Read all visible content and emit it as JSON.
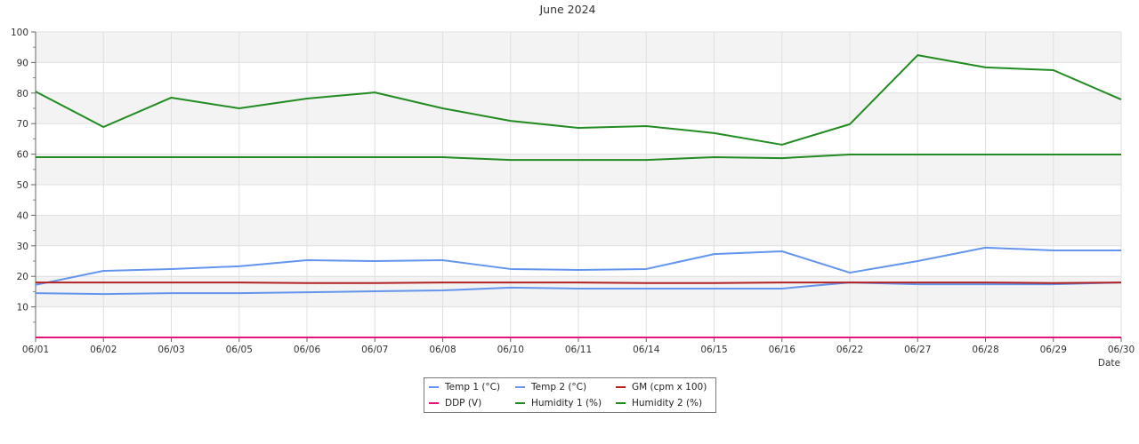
{
  "chart_data": {
    "type": "line",
    "title": "June 2024",
    "xlabel": "Date",
    "ylabel": "",
    "ylim": [
      0,
      100
    ],
    "yticks": [
      10,
      20,
      30,
      40,
      50,
      60,
      70,
      80,
      90,
      100
    ],
    "grid": true,
    "legend_position": "bottom-center",
    "categories": [
      "06/01",
      "06/02",
      "06/03",
      "06/05",
      "06/06",
      "06/07",
      "06/08",
      "06/10",
      "06/11",
      "06/14",
      "06/15",
      "06/16",
      "06/22",
      "06/27",
      "06/28",
      "06/29",
      "06/30"
    ],
    "series": [
      {
        "name": "Temp 1 (°C)",
        "color": "#6495ed",
        "values": [
          14.5,
          14.2,
          14.5,
          14.5,
          14.8,
          15.1,
          15.4,
          16.3,
          16.0,
          16.0,
          16.0,
          16.0,
          18.0,
          17.4,
          17.4,
          17.4,
          18.0
        ]
      },
      {
        "name": "Temp 2 (°C)",
        "color": "#6495ed",
        "values": [
          17.2,
          21.8,
          22.4,
          23.3,
          25.3,
          25.0,
          25.3,
          22.4,
          22.1,
          22.4,
          27.3,
          28.2,
          21.2,
          25.0,
          29.4,
          28.5,
          28.5
        ]
      },
      {
        "name": "GM (cpm x 100)",
        "color": "#b22222",
        "values": [
          18.0,
          18.0,
          18.0,
          18.0,
          17.8,
          17.8,
          18.0,
          18.0,
          18.0,
          17.8,
          17.8,
          18.0,
          18.0,
          18.0,
          18.0,
          17.8,
          18.0
        ]
      },
      {
        "name": "DDP (V)",
        "color": "#e0157a",
        "values": [
          0,
          0,
          0,
          0,
          0,
          0,
          0,
          0,
          0,
          0,
          0,
          0,
          0,
          0,
          0,
          0,
          0
        ]
      },
      {
        "name": "Humidity 1 (%)",
        "color": "#228b22",
        "values": [
          80.5,
          68.9,
          78.5,
          75.0,
          78.2,
          80.2,
          75.0,
          70.9,
          68.6,
          69.2,
          66.9,
          63.1,
          69.8,
          92.4,
          88.4,
          87.5,
          77.9
        ]
      },
      {
        "name": "Humidity 2 (%)",
        "color": "#228b22",
        "values": [
          59.0,
          59.0,
          59.0,
          59.0,
          59.0,
          59.0,
          59.0,
          58.1,
          58.1,
          58.1,
          59.0,
          58.7,
          59.9,
          59.9,
          59.9,
          59.9,
          59.9
        ]
      }
    ]
  }
}
